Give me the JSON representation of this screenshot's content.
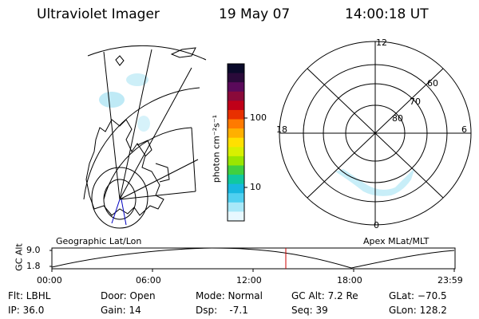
{
  "header": {
    "instrument": "Ultraviolet Imager",
    "date": "19 May 07",
    "time": "14:00:18 UT"
  },
  "colorbar": {
    "unit_label": "photon cm⁻²s⁻¹",
    "ticks": [
      "100",
      "10"
    ],
    "colors": [
      "#0a0a2a",
      "#2a0a3a",
      "#5a0a5a",
      "#8a0a3a",
      "#c00018",
      "#e83000",
      "#ff7a00",
      "#ffb000",
      "#ffe000",
      "#d8f000",
      "#9ae600",
      "#40d040",
      "#10c8a0",
      "#18b8e0",
      "#50d0f0",
      "#a8e8f8",
      "#e8f8ff"
    ]
  },
  "polar_plot": {
    "clock_labels": [
      "12",
      "18",
      "6",
      "0"
    ],
    "lat_labels": [
      "60",
      "70",
      "80"
    ]
  },
  "timeline": {
    "left_caption": "Geographic Lat/Lon",
    "right_caption": "Apex MLat/MLT",
    "y_axis_label": "GC Alt",
    "y_ticks": [
      "9.0",
      "1.8"
    ],
    "time_ticks": [
      "00:00",
      "06:00",
      "12:00",
      "18:00",
      "23:59"
    ],
    "current_time_marker": "14:00:18",
    "marker_color": "#cc0000"
  },
  "status": {
    "flt": "Flt: LBHL",
    "ip": "IP: 36.0",
    "door": "Door: Open",
    "gain": "Gain: 14",
    "mode": "Mode: Normal",
    "dsp": "Dsp:    -7.1",
    "gc_alt": "GC Alt: 7.2 Re",
    "seq": "Seq: 39",
    "glat": "GLat: −70.5",
    "glon": "GLon: 128.2"
  }
}
